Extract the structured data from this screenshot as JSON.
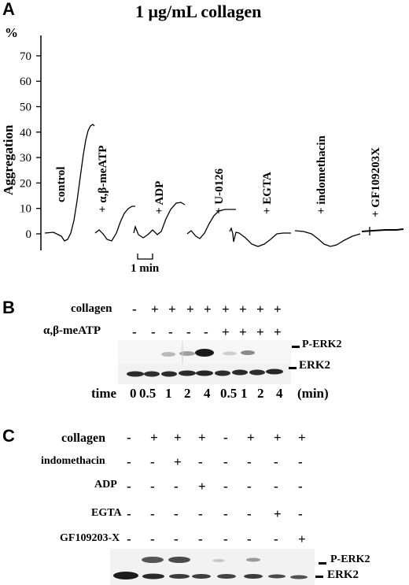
{
  "panelA": {
    "letter": "A",
    "title": "1 μg/mL collagen",
    "unit": "%",
    "ylabel": "Aggregation",
    "ticks": [
      "70",
      "60",
      "50",
      "40",
      "30",
      "20",
      "10",
      "0"
    ],
    "traces": [
      "control",
      "+ α,β-meATP",
      "+ ADP",
      "+ U-0126",
      "+ EGTA",
      "+ indomethacin",
      "+ GF109203X"
    ],
    "scale_bar": "1 min"
  },
  "panelB": {
    "letter": "B",
    "rows": [
      {
        "label": "collagen",
        "marks": [
          "-",
          "+",
          "+",
          "+",
          "+",
          "+",
          "+",
          "+",
          "+"
        ]
      },
      {
        "label": "α,β-meATP",
        "marks": [
          "-",
          "-",
          "-",
          "-",
          "-",
          "+",
          "+",
          "+",
          "+"
        ]
      }
    ],
    "band_labels": [
      "P-ERK2",
      "ERK2"
    ],
    "time_label": "time",
    "times": [
      "0",
      "0.5",
      "1",
      "2",
      "4",
      "0.5",
      "1",
      "2",
      "4"
    ],
    "time_unit": "(min)"
  },
  "panelC": {
    "letter": "C",
    "rows": [
      {
        "label": "collagen",
        "marks": [
          "-",
          "+",
          "+",
          "+",
          "-",
          "+",
          "+",
          "+"
        ]
      },
      {
        "label": "indomethacin",
        "marks": [
          "-",
          "-",
          "+",
          "-",
          "-",
          "-",
          "-",
          "-"
        ]
      },
      {
        "label": "ADP",
        "marks": [
          "-",
          "-",
          "-",
          "+",
          "-",
          "-",
          "-",
          "-"
        ]
      },
      {
        "label": "EGTA",
        "marks": [
          "-",
          "-",
          "-",
          "-",
          "-",
          "-",
          "+",
          "-"
        ]
      },
      {
        "label": "GF109203-X",
        "marks": [
          "-",
          "-",
          "-",
          "-",
          "-",
          "-",
          "-",
          "+"
        ]
      }
    ],
    "band_labels": [
      "P-ERK2",
      "ERK2"
    ]
  }
}
